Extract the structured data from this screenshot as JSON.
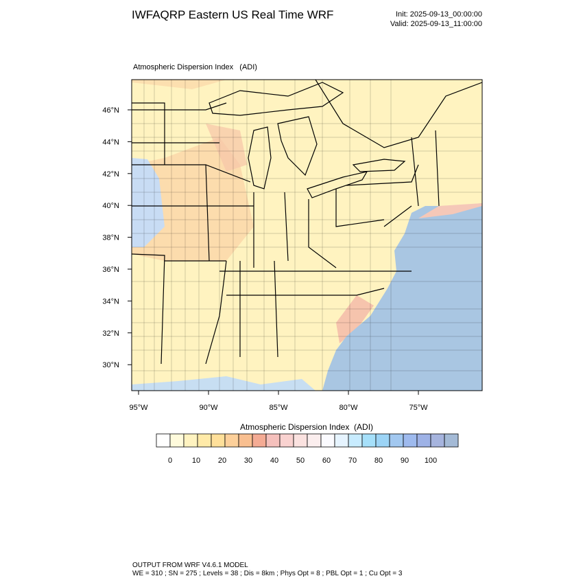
{
  "header": {
    "title": "IWFAQRP Eastern US Real Time WRF",
    "init": "Init: 2025-09-13_00:00:00",
    "valid": "Valid: 2025-09-13_11:00:00"
  },
  "map": {
    "title": "Atmospheric Dispersion Index   (ADI)",
    "lat_labels": [
      "46°N",
      "44°N",
      "42°N",
      "40°N",
      "38°N",
      "36°N",
      "34°N",
      "32°N",
      "30°N"
    ],
    "lon_labels": [
      "95°W",
      "90°W",
      "85°W",
      "80°W",
      "75°W"
    ]
  },
  "colorbar": {
    "title": "Atmospheric Dispersion Index  (ADI)",
    "ticks": [
      0,
      10,
      20,
      30,
      40,
      50,
      60,
      70,
      80,
      90,
      100
    ],
    "colors": [
      "#ffffff",
      "#fffbdc",
      "#fff3c0",
      "#ffeaa8",
      "#ffe09a",
      "#fdd09a",
      "#f9bf90",
      "#f4ab94",
      "#f5c0bc",
      "#f9d2d0",
      "#fbe2e0",
      "#fbeeee",
      "#fbfbff",
      "#e6f4ff",
      "#c8ecff",
      "#a6e0fa",
      "#9cd4f6",
      "#a2c8f0",
      "#9ebaee",
      "#9eb2e6",
      "#a6b4de",
      "#a4bad6"
    ]
  },
  "footer": {
    "line1": "OUTPUT FROM WRF V4.6.1 MODEL",
    "line2": "WE = 310 ; SN = 275 ; Levels = 38 ; Dis = 8km ; Phys Opt = 8 ; PBL Opt = 1 ; Cu Opt = 3"
  }
}
